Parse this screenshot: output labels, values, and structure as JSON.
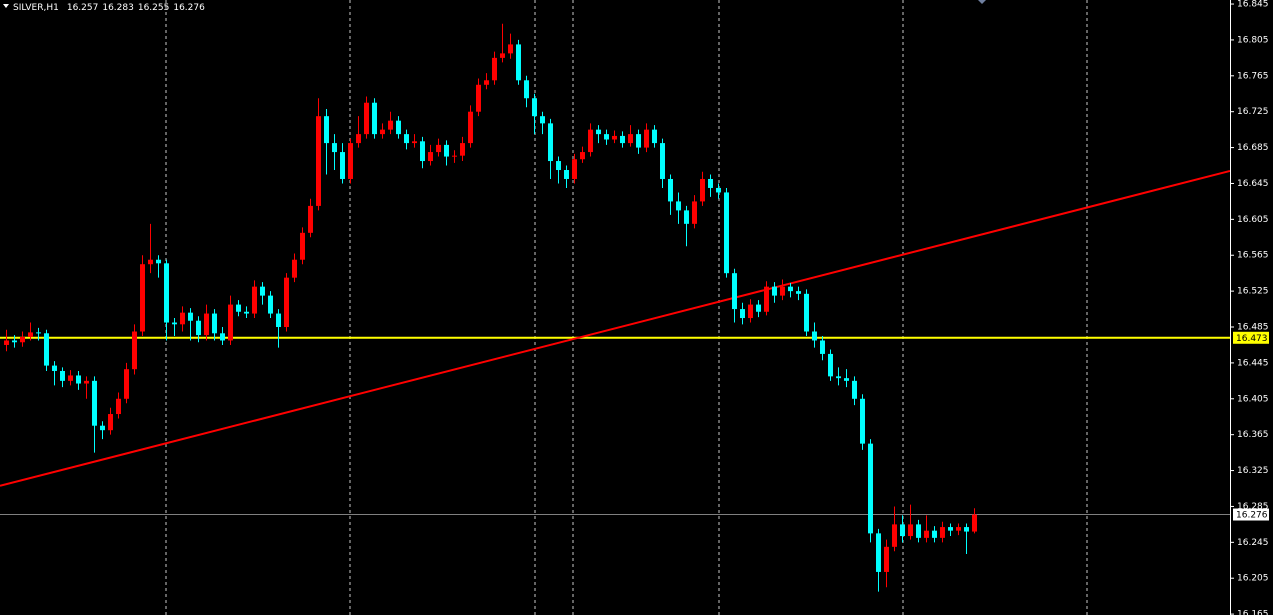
{
  "chart_data": {
    "type": "candlestick",
    "title": "SILVER,H1",
    "up_color": "#ff0000",
    "down_color": "#00ffff",
    "ylim": [
      16.164,
      16.8495
    ],
    "yticks": [
      16.845,
      16.805,
      16.765,
      16.725,
      16.685,
      16.645,
      16.605,
      16.565,
      16.525,
      16.485,
      16.445,
      16.405,
      16.365,
      16.325,
      16.285,
      16.245,
      16.205,
      16.165
    ],
    "hlines": [
      {
        "value": 16.473,
        "color": "#ffff00"
      },
      {
        "value": 16.276,
        "color": "#808080"
      }
    ],
    "trendline": {
      "start": 16.308,
      "end": 16.659,
      "color": "#ff0000"
    },
    "candles": [
      [
        16.465,
        16.482,
        16.458,
        16.47
      ],
      [
        16.47,
        16.476,
        16.462,
        16.468
      ],
      [
        16.468,
        16.48,
        16.463,
        16.474
      ],
      [
        16.474,
        16.49,
        16.47,
        16.479
      ],
      [
        16.479,
        16.484,
        16.47,
        16.478
      ],
      [
        16.478,
        16.482,
        16.436,
        16.442
      ],
      [
        16.442,
        16.447,
        16.42,
        16.436
      ],
      [
        16.436,
        16.44,
        16.418,
        16.425
      ],
      [
        16.425,
        16.437,
        16.42,
        16.431
      ],
      [
        16.431,
        16.436,
        16.415,
        16.422
      ],
      [
        16.422,
        16.43,
        16.405,
        16.425
      ],
      [
        16.425,
        16.43,
        16.345,
        16.375
      ],
      [
        16.375,
        16.38,
        16.36,
        16.37
      ],
      [
        16.37,
        16.395,
        16.365,
        16.388
      ],
      [
        16.388,
        16.412,
        16.383,
        16.405
      ],
      [
        16.405,
        16.445,
        16.4,
        16.438
      ],
      [
        16.438,
        16.488,
        16.432,
        16.48
      ],
      [
        16.48,
        16.565,
        16.475,
        16.555
      ],
      [
        16.555,
        16.6,
        16.545,
        16.56
      ],
      [
        16.56,
        16.565,
        16.54,
        16.556
      ],
      [
        16.556,
        16.56,
        16.47,
        16.49
      ],
      [
        16.49,
        16.495,
        16.475,
        16.488
      ],
      [
        16.488,
        16.508,
        16.48,
        16.501
      ],
      [
        16.501,
        16.506,
        16.47,
        16.492
      ],
      [
        16.492,
        16.497,
        16.468,
        16.476
      ],
      [
        16.476,
        16.51,
        16.47,
        16.5
      ],
      [
        16.5,
        16.505,
        16.47,
        16.478
      ],
      [
        16.478,
        16.485,
        16.465,
        16.47
      ],
      [
        16.47,
        16.52,
        16.465,
        16.51
      ],
      [
        16.51,
        16.515,
        16.497,
        16.502
      ],
      [
        16.502,
        16.508,
        16.495,
        16.5
      ],
      [
        16.5,
        16.537,
        16.495,
        16.53
      ],
      [
        16.53,
        16.535,
        16.51,
        16.52
      ],
      [
        16.52,
        16.525,
        16.495,
        16.5
      ],
      [
        16.5,
        16.505,
        16.462,
        16.485
      ],
      [
        16.485,
        16.545,
        16.48,
        16.54
      ],
      [
        16.54,
        16.567,
        16.535,
        16.56
      ],
      [
        16.56,
        16.596,
        16.555,
        16.59
      ],
      [
        16.59,
        16.628,
        16.585,
        16.62
      ],
      [
        16.62,
        16.74,
        16.615,
        16.72
      ],
      [
        16.72,
        16.728,
        16.655,
        16.69
      ],
      [
        16.69,
        16.7,
        16.66,
        16.68
      ],
      [
        16.68,
        16.69,
        16.645,
        16.65
      ],
      [
        16.65,
        16.695,
        16.645,
        16.69
      ],
      [
        16.69,
        16.72,
        16.685,
        16.7
      ],
      [
        16.7,
        16.742,
        16.695,
        16.735
      ],
      [
        16.735,
        16.74,
        16.695,
        16.7
      ],
      [
        16.7,
        16.712,
        16.695,
        16.705
      ],
      [
        16.705,
        16.725,
        16.7,
        16.715
      ],
      [
        16.715,
        16.72,
        16.695,
        16.7
      ],
      [
        16.7,
        16.705,
        16.683,
        16.69
      ],
      [
        16.69,
        16.7,
        16.685,
        16.692
      ],
      [
        16.692,
        16.697,
        16.662,
        16.67
      ],
      [
        16.67,
        16.688,
        16.665,
        16.68
      ],
      [
        16.68,
        16.695,
        16.675,
        16.688
      ],
      [
        16.688,
        16.693,
        16.665,
        16.675
      ],
      [
        16.675,
        16.682,
        16.668,
        16.676
      ],
      [
        16.676,
        16.697,
        16.67,
        16.69
      ],
      [
        16.69,
        16.732,
        16.685,
        16.725
      ],
      [
        16.725,
        16.762,
        16.72,
        16.755
      ],
      [
        16.755,
        16.768,
        16.75,
        16.76
      ],
      [
        16.76,
        16.792,
        16.755,
        16.785
      ],
      [
        16.785,
        16.823,
        16.78,
        16.79
      ],
      [
        16.79,
        16.812,
        16.784,
        16.8
      ],
      [
        16.8,
        16.805,
        16.755,
        16.76
      ],
      [
        16.76,
        16.765,
        16.73,
        16.74
      ],
      [
        16.74,
        16.745,
        16.7,
        16.72
      ],
      [
        16.72,
        16.725,
        16.7,
        16.712
      ],
      [
        16.712,
        16.717,
        16.65,
        16.67
      ],
      [
        16.67,
        16.675,
        16.645,
        16.66
      ],
      [
        16.66,
        16.665,
        16.64,
        16.65
      ],
      [
        16.65,
        16.678,
        16.645,
        16.672
      ],
      [
        16.672,
        16.686,
        16.668,
        16.68
      ],
      [
        16.68,
        16.712,
        16.675,
        16.705
      ],
      [
        16.705,
        16.71,
        16.69,
        16.7
      ],
      [
        16.7,
        16.705,
        16.688,
        16.694
      ],
      [
        16.694,
        16.704,
        16.69,
        16.698
      ],
      [
        16.698,
        16.703,
        16.685,
        16.69
      ],
      [
        16.69,
        16.71,
        16.686,
        16.7
      ],
      [
        16.7,
        16.705,
        16.678,
        16.685
      ],
      [
        16.685,
        16.712,
        16.68,
        16.705
      ],
      [
        16.705,
        16.71,
        16.685,
        16.69
      ],
      [
        16.69,
        16.695,
        16.64,
        16.65
      ],
      [
        16.65,
        16.655,
        16.61,
        16.625
      ],
      [
        16.625,
        16.635,
        16.6,
        16.615
      ],
      [
        16.615,
        16.62,
        16.575,
        16.6
      ],
      [
        16.6,
        16.632,
        16.595,
        16.625
      ],
      [
        16.625,
        16.658,
        16.62,
        16.65
      ],
      [
        16.65,
        16.655,
        16.63,
        16.64
      ],
      [
        16.64,
        16.645,
        16.628,
        16.635
      ],
      [
        16.635,
        16.64,
        16.54,
        16.545
      ],
      [
        16.545,
        16.55,
        16.49,
        16.505
      ],
      [
        16.505,
        16.512,
        16.488,
        16.495
      ],
      [
        16.495,
        16.516,
        16.49,
        16.51
      ],
      [
        16.51,
        16.515,
        16.496,
        16.502
      ],
      [
        16.502,
        16.536,
        16.498,
        16.53
      ],
      [
        16.53,
        16.535,
        16.512,
        16.52
      ],
      [
        16.52,
        16.538,
        16.515,
        16.53
      ],
      [
        16.53,
        16.534,
        16.518,
        16.525
      ],
      [
        16.525,
        16.53,
        16.515,
        16.522
      ],
      [
        16.522,
        16.527,
        16.475,
        16.48
      ],
      [
        16.48,
        16.49,
        16.462,
        16.47
      ],
      [
        16.47,
        16.475,
        16.448,
        16.455
      ],
      [
        16.455,
        16.46,
        16.425,
        16.43
      ],
      [
        16.43,
        16.44,
        16.42,
        16.428
      ],
      [
        16.428,
        16.438,
        16.418,
        16.425
      ],
      [
        16.425,
        16.43,
        16.398,
        16.405
      ],
      [
        16.405,
        16.41,
        16.348,
        16.355
      ],
      [
        16.355,
        16.36,
        16.245,
        16.255
      ],
      [
        16.255,
        16.26,
        16.19,
        16.212
      ],
      [
        16.212,
        16.248,
        16.195,
        16.24
      ],
      [
        16.24,
        16.285,
        16.235,
        16.265
      ],
      [
        16.265,
        16.275,
        16.245,
        16.252
      ],
      [
        16.252,
        16.287,
        16.248,
        16.265
      ],
      [
        16.265,
        16.27,
        16.245,
        16.25
      ],
      [
        16.25,
        16.275,
        16.245,
        16.258
      ],
      [
        16.258,
        16.263,
        16.245,
        16.25
      ],
      [
        16.25,
        16.268,
        16.245,
        16.262
      ],
      [
        16.262,
        16.266,
        16.252,
        16.258
      ],
      [
        16.258,
        16.266,
        16.253,
        16.262
      ],
      [
        16.262,
        16.266,
        16.232,
        16.257
      ],
      [
        16.257,
        16.283,
        16.255,
        16.276
      ]
    ]
  }
}
